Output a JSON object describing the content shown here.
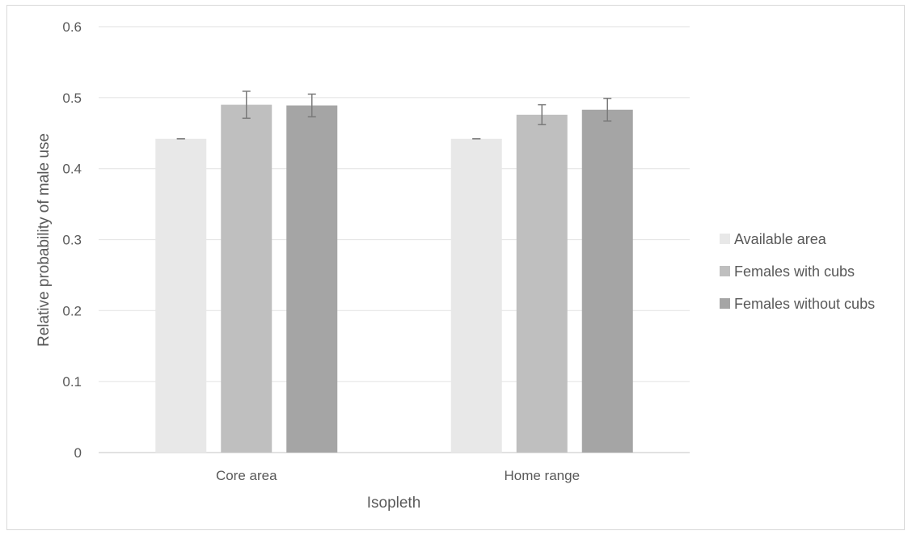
{
  "chart_data": {
    "type": "bar",
    "title": "",
    "xlabel": "Isopleth",
    "ylabel": "Relative probability of male use",
    "categories": [
      "Core area",
      "Home range"
    ],
    "series": [
      {
        "name": "Available area",
        "values": [
          0.442,
          0.442
        ],
        "errors": [
          0.0,
          0.0
        ],
        "color": "#e8e8e8"
      },
      {
        "name": "Females with cubs",
        "values": [
          0.49,
          0.476
        ],
        "errors": [
          0.019,
          0.014
        ],
        "color": "#bfbfbf"
      },
      {
        "name": "Females without cubs",
        "values": [
          0.489,
          0.483
        ],
        "errors": [
          0.016,
          0.016
        ],
        "color": "#a5a5a5"
      }
    ],
    "ylim": [
      0,
      0.6
    ],
    "yticks": [
      "0",
      "0.1",
      "0.2",
      "0.3",
      "0.4",
      "0.5",
      "0.6"
    ],
    "grid": true,
    "legend_position": "right"
  }
}
